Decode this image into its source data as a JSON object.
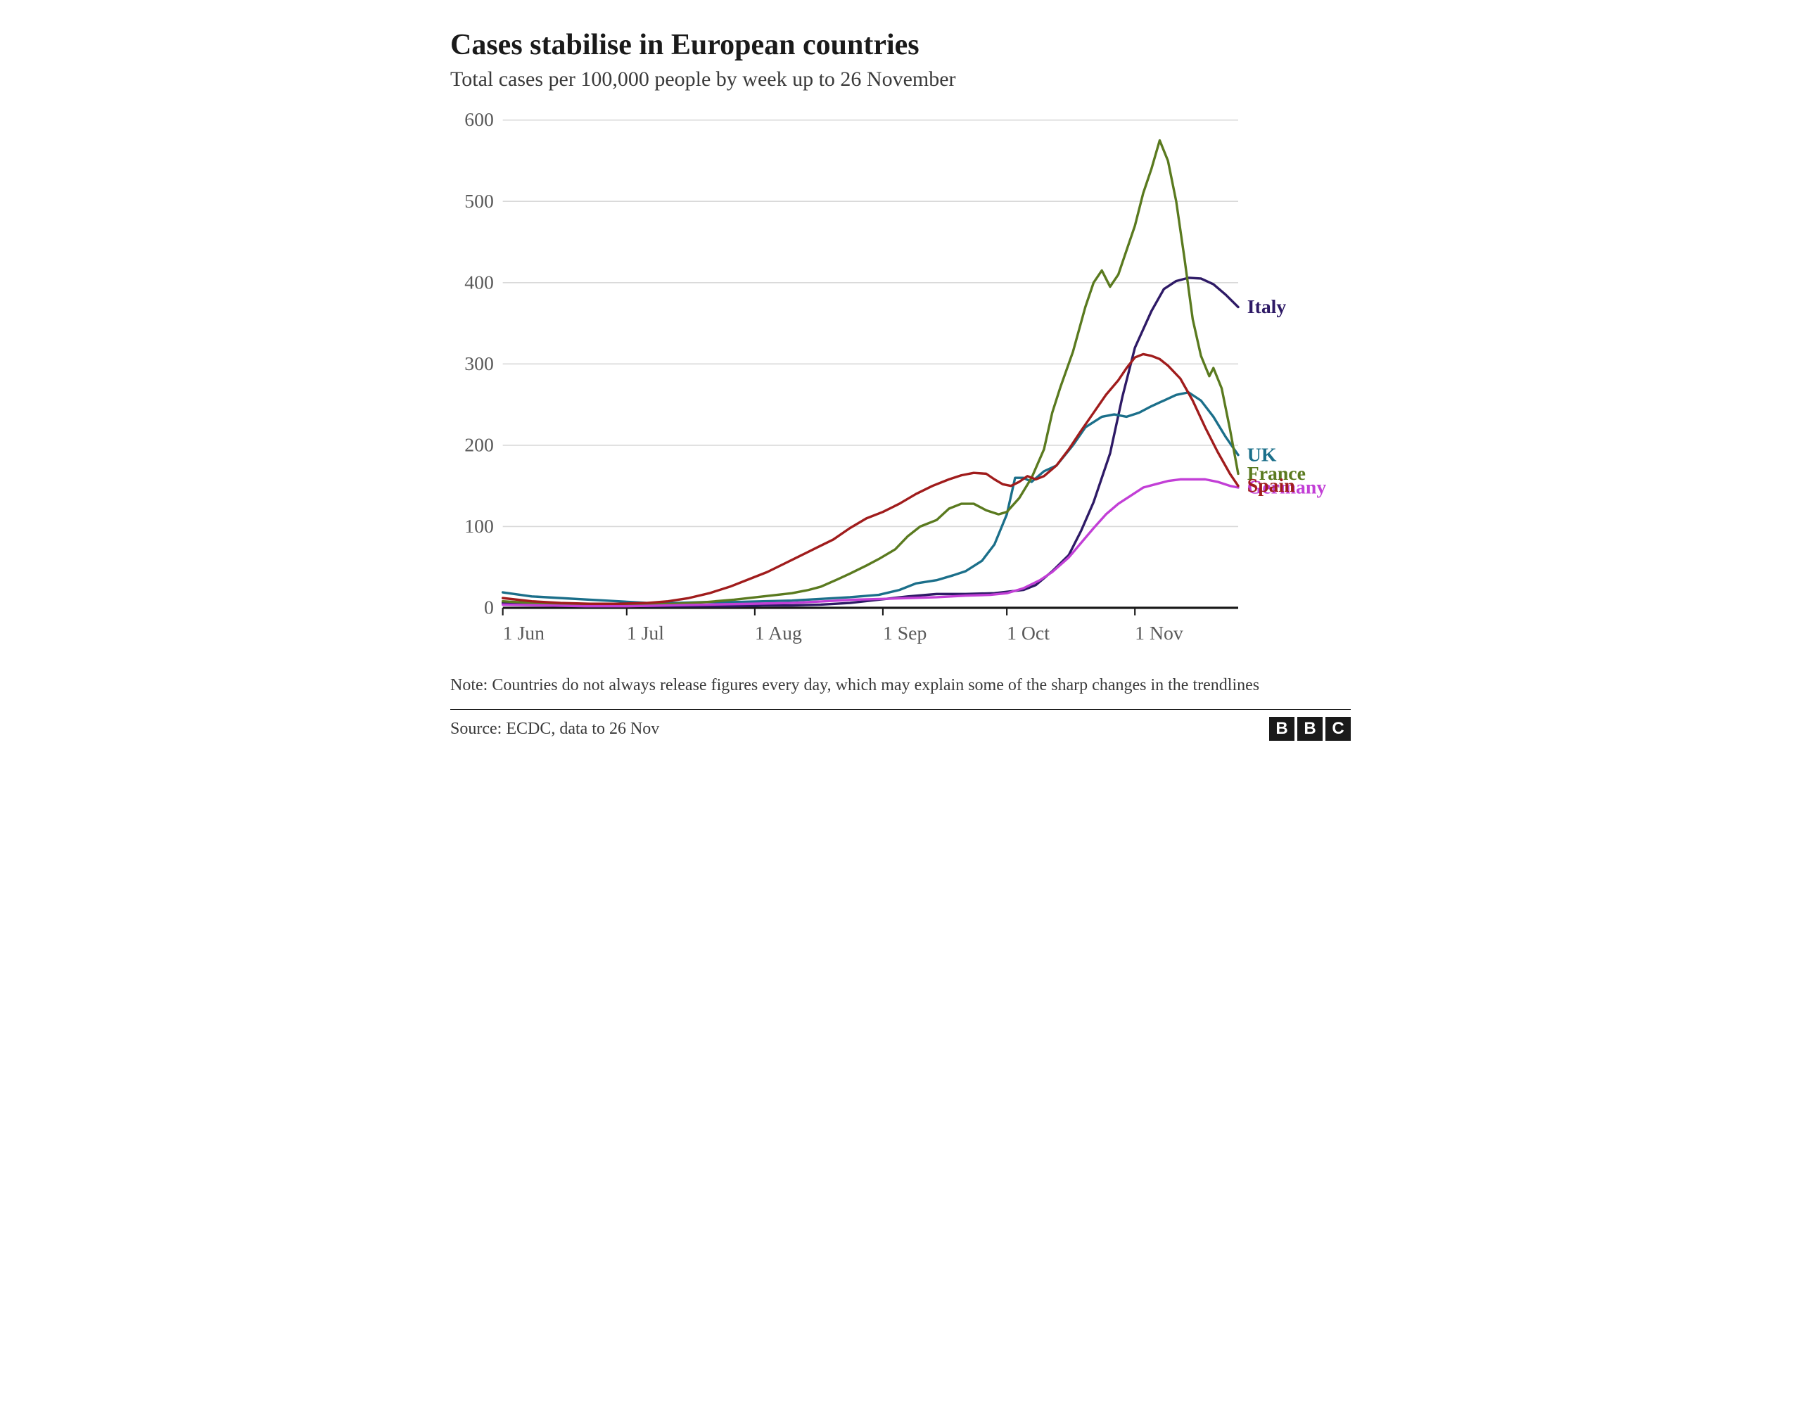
{
  "title": "Cases stabilise in European countries",
  "subtitle": "Total cases per 100,000 people by week up to 26 November",
  "note": "Note: Countries do not always release figures every day, which may explain some of the sharp changes in the trendlines",
  "source": "Source: ECDC, data to 26 Nov",
  "logo_letters": [
    "B",
    "B",
    "C"
  ],
  "chart": {
    "type": "line",
    "background_color": "#ffffff",
    "grid_color": "#d9d9d9",
    "axis_color": "#1a1a1a",
    "tick_label_color": "#5a5a5a",
    "tick_fontsize": 26,
    "label_fontsize": 26,
    "line_width": 3.2,
    "x_domain_days": [
      0,
      178
    ],
    "y_domain": [
      0,
      600
    ],
    "y_ticks": [
      0,
      100,
      200,
      300,
      400,
      500,
      600
    ],
    "x_ticks": [
      {
        "day": 0,
        "label": "1 Jun"
      },
      {
        "day": 30,
        "label": "1 Jul"
      },
      {
        "day": 61,
        "label": "1 Aug"
      },
      {
        "day": 92,
        "label": "1 Sep"
      },
      {
        "day": 122,
        "label": "1 Oct"
      },
      {
        "day": 153,
        "label": "1 Nov"
      }
    ],
    "series": [
      {
        "name": "Italy",
        "color": "#2e1a66",
        "end_label_y": 370,
        "points": [
          [
            0,
            6
          ],
          [
            7,
            4
          ],
          [
            14,
            3
          ],
          [
            21,
            3
          ],
          [
            28,
            3
          ],
          [
            35,
            2
          ],
          [
            42,
            2
          ],
          [
            49,
            2
          ],
          [
            56,
            2
          ],
          [
            63,
            3
          ],
          [
            70,
            3
          ],
          [
            77,
            4
          ],
          [
            84,
            6
          ],
          [
            91,
            10
          ],
          [
            98,
            14
          ],
          [
            105,
            17
          ],
          [
            112,
            17
          ],
          [
            119,
            18
          ],
          [
            126,
            22
          ],
          [
            129,
            28
          ],
          [
            133,
            45
          ],
          [
            137,
            65
          ],
          [
            140,
            95
          ],
          [
            143,
            130
          ],
          [
            147,
            190
          ],
          [
            150,
            260
          ],
          [
            153,
            320
          ],
          [
            157,
            365
          ],
          [
            160,
            392
          ],
          [
            163,
            402
          ],
          [
            166,
            406
          ],
          [
            169,
            405
          ],
          [
            172,
            398
          ],
          [
            175,
            385
          ],
          [
            178,
            370
          ]
        ]
      },
      {
        "name": "UK",
        "color": "#1b6f8a",
        "end_label_y": 188,
        "points": [
          [
            0,
            19
          ],
          [
            7,
            14
          ],
          [
            14,
            12
          ],
          [
            21,
            10
          ],
          [
            28,
            8
          ],
          [
            35,
            6
          ],
          [
            42,
            6
          ],
          [
            49,
            7
          ],
          [
            56,
            7
          ],
          [
            63,
            8
          ],
          [
            70,
            9
          ],
          [
            77,
            11
          ],
          [
            84,
            13
          ],
          [
            91,
            16
          ],
          [
            96,
            22
          ],
          [
            100,
            30
          ],
          [
            105,
            34
          ],
          [
            109,
            40
          ],
          [
            112,
            45
          ],
          [
            116,
            58
          ],
          [
            119,
            78
          ],
          [
            122,
            115
          ],
          [
            124,
            160
          ],
          [
            126,
            160
          ],
          [
            128,
            155
          ],
          [
            131,
            168
          ],
          [
            134,
            175
          ],
          [
            138,
            200
          ],
          [
            141,
            222
          ],
          [
            145,
            235
          ],
          [
            148,
            238
          ],
          [
            151,
            235
          ],
          [
            154,
            240
          ],
          [
            157,
            248
          ],
          [
            160,
            255
          ],
          [
            163,
            262
          ],
          [
            166,
            265
          ],
          [
            169,
            255
          ],
          [
            172,
            235
          ],
          [
            175,
            210
          ],
          [
            178,
            188
          ]
        ]
      },
      {
        "name": "France",
        "color": "#5a7a1f",
        "end_label_y": 165,
        "points": [
          [
            0,
            8
          ],
          [
            7,
            6
          ],
          [
            14,
            5
          ],
          [
            21,
            5
          ],
          [
            28,
            4
          ],
          [
            35,
            4
          ],
          [
            42,
            5
          ],
          [
            49,
            7
          ],
          [
            56,
            10
          ],
          [
            63,
            14
          ],
          [
            70,
            18
          ],
          [
            74,
            22
          ],
          [
            77,
            26
          ],
          [
            81,
            35
          ],
          [
            84,
            42
          ],
          [
            88,
            52
          ],
          [
            91,
            60
          ],
          [
            95,
            72
          ],
          [
            98,
            88
          ],
          [
            101,
            100
          ],
          [
            105,
            108
          ],
          [
            108,
            122
          ],
          [
            111,
            128
          ],
          [
            114,
            128
          ],
          [
            117,
            120
          ],
          [
            120,
            115
          ],
          [
            122,
            118
          ],
          [
            125,
            135
          ],
          [
            128,
            160
          ],
          [
            131,
            195
          ],
          [
            133,
            240
          ],
          [
            135,
            272
          ],
          [
            138,
            315
          ],
          [
            141,
            370
          ],
          [
            143,
            400
          ],
          [
            145,
            415
          ],
          [
            147,
            395
          ],
          [
            149,
            410
          ],
          [
            151,
            440
          ],
          [
            153,
            470
          ],
          [
            155,
            510
          ],
          [
            157,
            540
          ],
          [
            159,
            575
          ],
          [
            161,
            550
          ],
          [
            163,
            500
          ],
          [
            165,
            430
          ],
          [
            167,
            355
          ],
          [
            169,
            310
          ],
          [
            171,
            285
          ],
          [
            172,
            295
          ],
          [
            174,
            270
          ],
          [
            176,
            220
          ],
          [
            178,
            165
          ]
        ]
      },
      {
        "name": "Germany",
        "color": "#c23fd6",
        "end_label_y": 148,
        "points": [
          [
            0,
            4
          ],
          [
            10,
            3
          ],
          [
            20,
            2
          ],
          [
            30,
            2
          ],
          [
            40,
            3
          ],
          [
            50,
            4
          ],
          [
            60,
            5
          ],
          [
            70,
            6
          ],
          [
            78,
            8
          ],
          [
            85,
            10
          ],
          [
            92,
            11
          ],
          [
            98,
            12
          ],
          [
            105,
            13
          ],
          [
            112,
            15
          ],
          [
            118,
            16
          ],
          [
            122,
            18
          ],
          [
            126,
            24
          ],
          [
            130,
            34
          ],
          [
            133,
            44
          ],
          [
            137,
            62
          ],
          [
            140,
            80
          ],
          [
            143,
            98
          ],
          [
            146,
            115
          ],
          [
            149,
            128
          ],
          [
            152,
            138
          ],
          [
            155,
            148
          ],
          [
            158,
            152
          ],
          [
            161,
            156
          ],
          [
            164,
            158
          ],
          [
            167,
            158
          ],
          [
            170,
            158
          ],
          [
            173,
            155
          ],
          [
            176,
            150
          ],
          [
            178,
            148
          ]
        ]
      },
      {
        "name": "Spain",
        "color": "#a01c1c",
        "end_label_y": 150,
        "points": [
          [
            0,
            12
          ],
          [
            7,
            8
          ],
          [
            14,
            6
          ],
          [
            21,
            5
          ],
          [
            28,
            5
          ],
          [
            35,
            6
          ],
          [
            40,
            8
          ],
          [
            45,
            12
          ],
          [
            50,
            18
          ],
          [
            55,
            26
          ],
          [
            60,
            36
          ],
          [
            64,
            44
          ],
          [
            68,
            54
          ],
          [
            72,
            64
          ],
          [
            76,
            74
          ],
          [
            80,
            84
          ],
          [
            84,
            98
          ],
          [
            88,
            110
          ],
          [
            92,
            118
          ],
          [
            96,
            128
          ],
          [
            100,
            140
          ],
          [
            104,
            150
          ],
          [
            108,
            158
          ],
          [
            111,
            163
          ],
          [
            114,
            166
          ],
          [
            117,
            165
          ],
          [
            119,
            158
          ],
          [
            121,
            152
          ],
          [
            123,
            150
          ],
          [
            125,
            155
          ],
          [
            127,
            162
          ],
          [
            129,
            158
          ],
          [
            131,
            162
          ],
          [
            134,
            175
          ],
          [
            137,
            195
          ],
          [
            140,
            218
          ],
          [
            143,
            240
          ],
          [
            146,
            262
          ],
          [
            149,
            280
          ],
          [
            151,
            295
          ],
          [
            153,
            308
          ],
          [
            155,
            312
          ],
          [
            157,
            310
          ],
          [
            159,
            306
          ],
          [
            161,
            298
          ],
          [
            164,
            282
          ],
          [
            167,
            255
          ],
          [
            170,
            222
          ],
          [
            173,
            192
          ],
          [
            176,
            165
          ],
          [
            178,
            150
          ]
        ]
      }
    ]
  }
}
